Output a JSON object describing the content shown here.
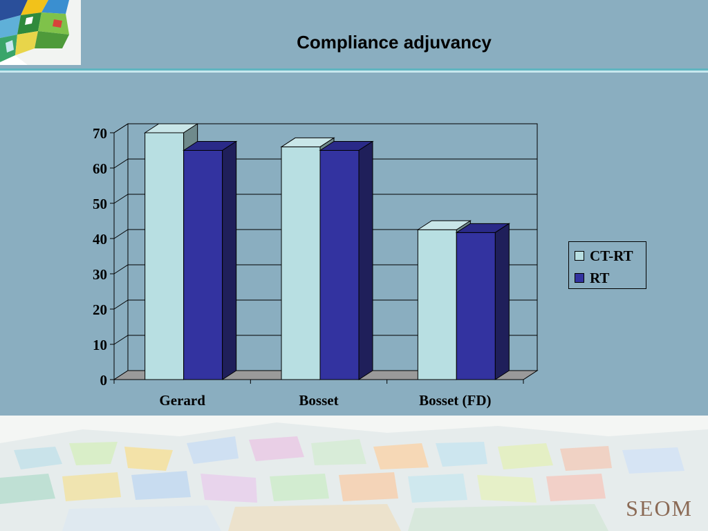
{
  "slide": {
    "title": "Compliance adjuvancy",
    "brand": "SEOM"
  },
  "colors": {
    "background": "#8aaec0",
    "ct_rt": "#b8dfe2",
    "rt": "#3333a0",
    "floor": "#9a9a9a"
  },
  "chart_data": {
    "type": "bar",
    "categories": [
      "Gerard",
      "Bosset",
      "Bosset (FD)"
    ],
    "series": [
      {
        "name": "CT-RT",
        "values": [
          70,
          66,
          42.5
        ]
      },
      {
        "name": "RT",
        "values": [
          65,
          65,
          41.7
        ]
      }
    ],
    "ylim": [
      0,
      70
    ],
    "yticks": [
      "0",
      "10",
      "20",
      "30",
      "40",
      "50",
      "60",
      "70"
    ],
    "grid": true,
    "legend_position": "right",
    "three_d": true
  }
}
